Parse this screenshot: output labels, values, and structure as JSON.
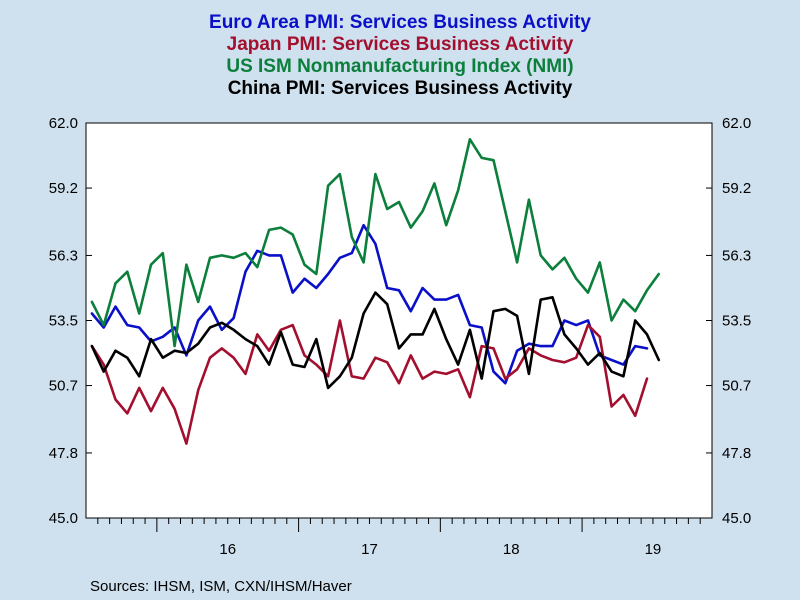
{
  "chart_data": {
    "type": "line",
    "title_lines": [
      {
        "text": "Euro Area PMI: Services Business Activity",
        "color": "#0a10c8"
      },
      {
        "text": "Japan PMI: Services Business Activity",
        "color": "#a3102f"
      },
      {
        "text": "US ISM Nonmanufacturing Index (NMI)",
        "color": "#0b7f3b"
      },
      {
        "text": "China PMI: Services Business Activity",
        "color": "#000000"
      }
    ],
    "ylim": [
      45.0,
      62.0
    ],
    "y_ticks": [
      "45.0",
      "47.8",
      "50.7",
      "53.5",
      "56.3",
      "59.2",
      "62.0"
    ],
    "y_tick_values": [
      45.0,
      47.8,
      50.7,
      53.5,
      56.3,
      59.2,
      62.0
    ],
    "x_range": [
      "2015-07",
      "2019-11"
    ],
    "x_ticks": [
      "16",
      "17",
      "18",
      "19"
    ],
    "grid": false,
    "source": "Sources:  IHSM, ISM, CXN/IHSM/Haver",
    "series": [
      {
        "name": "Euro Area PMI: Services Business Activity",
        "color": "#0a10c8",
        "values": [
          53.8,
          53.2,
          54.1,
          53.3,
          53.2,
          52.6,
          52.8,
          53.2,
          52.0,
          53.5,
          54.1,
          53.1,
          53.6,
          55.6,
          56.5,
          56.3,
          56.3,
          54.7,
          55.3,
          54.9,
          55.5,
          56.2,
          56.4,
          57.6,
          56.8,
          54.9,
          54.8,
          53.9,
          54.9,
          54.4,
          54.4,
          54.6,
          53.3,
          53.2,
          51.3,
          50.8,
          52.2,
          52.5,
          52.4,
          52.4,
          53.5,
          53.3,
          53.5,
          52.0,
          51.8,
          51.6,
          52.4,
          52.3
        ]
      },
      {
        "name": "Japan PMI: Services Business Activity",
        "color": "#a3102f",
        "values": [
          52.4,
          51.6,
          50.1,
          49.5,
          50.6,
          49.6,
          50.6,
          49.7,
          48.2,
          50.5,
          51.9,
          52.3,
          51.9,
          51.2,
          52.9,
          52.2,
          53.1,
          53.3,
          52.0,
          51.6,
          51.1,
          53.5,
          51.1,
          51.0,
          51.9,
          51.7,
          50.8,
          52.0,
          51.0,
          51.3,
          51.2,
          51.4,
          50.2,
          52.4,
          52.3,
          51.0,
          51.4,
          52.3,
          52.0,
          51.8,
          51.7,
          51.9,
          53.3,
          52.8,
          49.8,
          50.3,
          49.4,
          51.0
        ]
      },
      {
        "name": "US ISM Nonmanufacturing Index (NMI)",
        "color": "#0b7f3b",
        "values": [
          54.3,
          53.3,
          55.1,
          55.6,
          53.8,
          55.9,
          56.4,
          52.4,
          55.9,
          54.3,
          56.2,
          56.3,
          56.2,
          56.4,
          55.8,
          57.4,
          57.5,
          57.2,
          55.9,
          55.5,
          59.3,
          59.8,
          57.1,
          56.0,
          59.8,
          58.3,
          58.6,
          57.5,
          58.2,
          59.4,
          57.6,
          59.1,
          61.3,
          60.5,
          60.4,
          58.2,
          56.0,
          58.7,
          56.3,
          55.7,
          56.2,
          55.3,
          54.7,
          56.0,
          53.5,
          54.4,
          53.9,
          54.8,
          55.5
        ]
      },
      {
        "name": "China PMI: Services Business Activity",
        "color": "#000000",
        "values": [
          52.4,
          51.3,
          52.2,
          51.9,
          51.1,
          52.7,
          51.9,
          52.2,
          52.1,
          52.5,
          53.2,
          53.4,
          53.1,
          52.7,
          52.4,
          51.6,
          53.0,
          51.6,
          51.5,
          52.7,
          50.6,
          51.1,
          51.9,
          53.8,
          54.7,
          54.2,
          52.3,
          52.9,
          52.9,
          54.0,
          52.7,
          51.6,
          53.1,
          51.0,
          53.9,
          54.0,
          53.7,
          51.2,
          54.4,
          54.5,
          52.9,
          52.3,
          51.6,
          52.1,
          51.3,
          51.1,
          53.5,
          52.9,
          51.8
        ]
      }
    ]
  }
}
